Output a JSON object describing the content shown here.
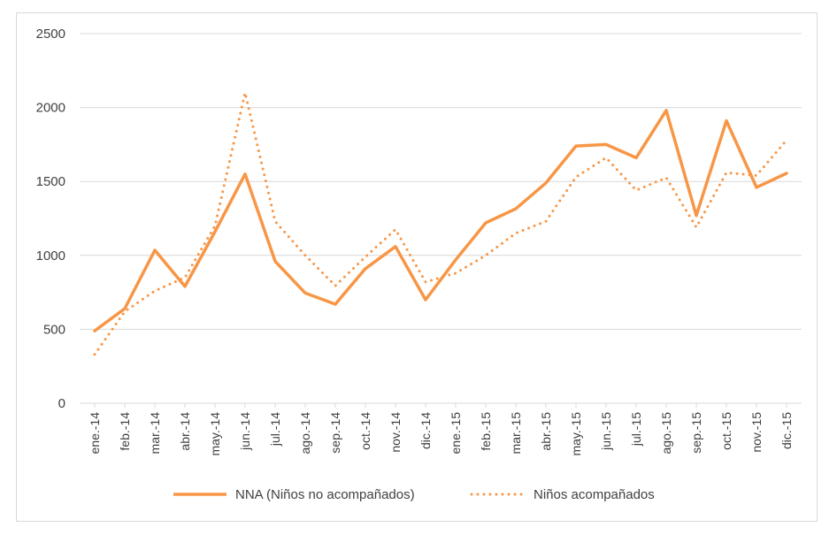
{
  "chart_data": {
    "type": "line",
    "title": "",
    "xlabel": "",
    "ylabel": "",
    "ylim": [
      0,
      2500
    ],
    "yticks": [
      0,
      500,
      1000,
      1500,
      2000,
      2500
    ],
    "grid": true,
    "legend_position": "bottom",
    "categories": [
      "ene.-14",
      "feb.-14",
      "mar.-14",
      "abr.-14",
      "may.-14",
      "jun.-14",
      "jul.-14",
      "ago.-14",
      "sep.-14",
      "oct.-14",
      "nov.-14",
      "dic.-14",
      "ene.-15",
      "feb.-15",
      "mar.-15",
      "abr.-15",
      "may.-15",
      "jun.-15",
      "jul.-15",
      "ago.-15",
      "sep.-15",
      "oct.-15",
      "nov.-15",
      "dic.-15"
    ],
    "series": [
      {
        "name": "NNA (Niños no acompañados)",
        "style": "solid",
        "color": "#F79646",
        "values": [
          490,
          640,
          1035,
          790,
          1160,
          1550,
          960,
          745,
          670,
          910,
          1060,
          700,
          970,
          1220,
          1315,
          1490,
          1740,
          1750,
          1660,
          1980,
          1270,
          1910,
          1460,
          1555
        ]
      },
      {
        "name": "Niños acompañados",
        "style": "dotted",
        "color": "#F79646",
        "values": [
          330,
          620,
          760,
          850,
          1200,
          2100,
          1230,
          1000,
          795,
          990,
          1175,
          820,
          880,
          1000,
          1150,
          1230,
          1530,
          1660,
          1440,
          1525,
          1190,
          1560,
          1540,
          1780
        ]
      }
    ]
  }
}
